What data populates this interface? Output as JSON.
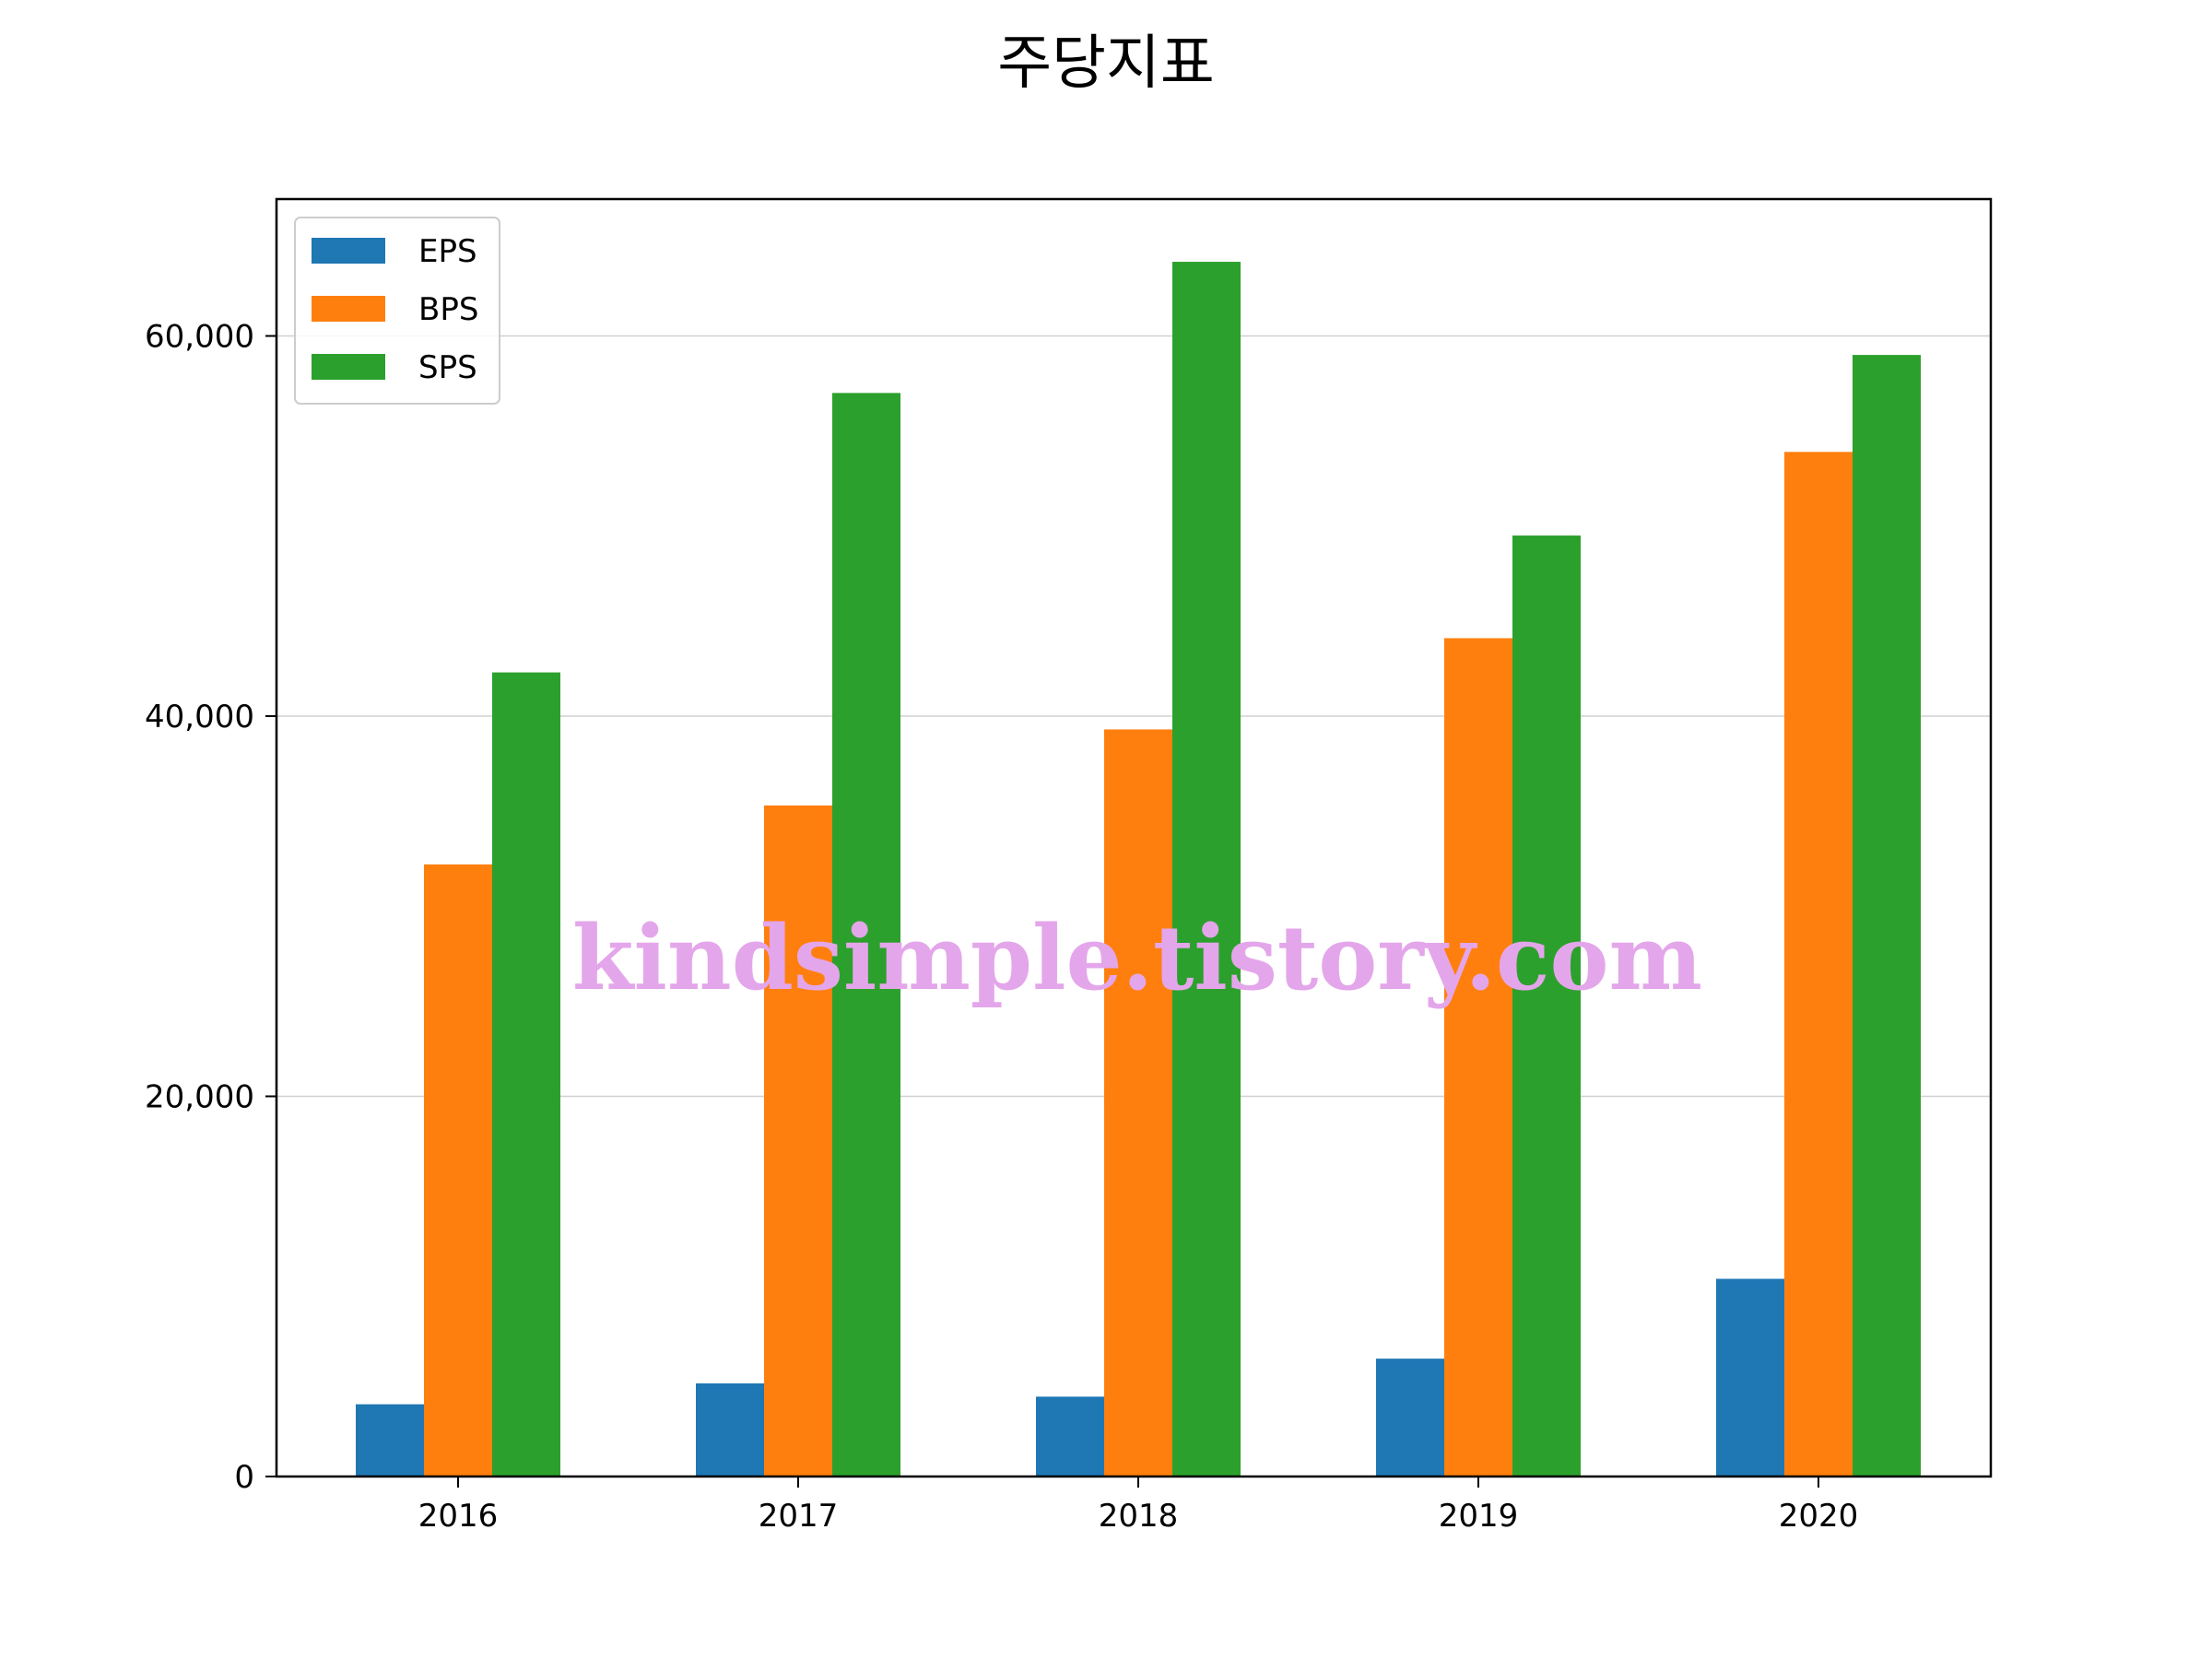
{
  "chart_data": {
    "type": "bar",
    "title": "주당지표",
    "xlabel": "",
    "ylabel": "",
    "categories": [
      "2016",
      "2017",
      "2018",
      "2019",
      "2020"
    ],
    "series": [
      {
        "name": "EPS",
        "color": "#1f77b4",
        "values": [
          3800,
          4900,
          4200,
          6200,
          10400
        ]
      },
      {
        "name": "BPS",
        "color": "#ff7f0e",
        "values": [
          32200,
          35300,
          39300,
          44100,
          53900
        ]
      },
      {
        "name": "SPS",
        "color": "#2ca02c",
        "values": [
          42300,
          57000,
          63900,
          49500,
          59000
        ]
      }
    ],
    "ylim": [
      0,
      67200
    ],
    "yticks": [
      0,
      20000,
      40000,
      60000
    ],
    "ytick_labels": [
      "0",
      "20,000",
      "40,000",
      "60,000"
    ],
    "grid": "horizontal",
    "legend_position": "upper-left"
  },
  "watermark": "kindsimple.tistory.com"
}
